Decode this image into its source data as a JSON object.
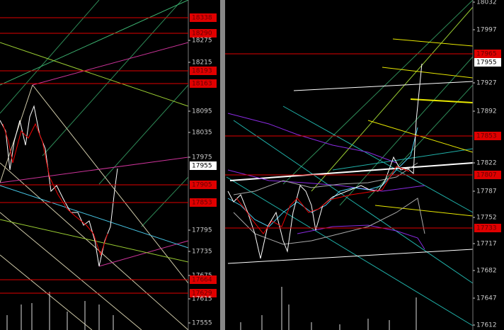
{
  "left_panel": {
    "labels": [
      {
        "text": "18338",
        "style": "alert"
      },
      {
        "text": "18290",
        "style": "alert"
      },
      {
        "text": "18275",
        "style": "plain"
      },
      {
        "text": "18215",
        "style": "plain"
      },
      {
        "text": "18193",
        "style": "alert"
      },
      {
        "text": "18163",
        "style": "alert"
      },
      {
        "text": "18095",
        "style": "plain"
      },
      {
        "text": "18035",
        "style": "plain"
      },
      {
        "text": "17975",
        "style": "plain"
      },
      {
        "text": "17955",
        "style": "current"
      },
      {
        "text": "17905",
        "style": "alert"
      },
      {
        "text": "17853",
        "style": "alert"
      },
      {
        "text": "17795",
        "style": "plain"
      },
      {
        "text": "17735",
        "style": "plain"
      },
      {
        "text": "17675",
        "style": "plain"
      },
      {
        "text": "17664",
        "style": "alert"
      },
      {
        "text": "17629",
        "style": "alert"
      },
      {
        "text": "17615",
        "style": "plain"
      },
      {
        "text": "17555",
        "style": "plain"
      }
    ]
  },
  "right_panel": {
    "labels": [
      {
        "text": "18032",
        "style": "plain"
      },
      {
        "text": "17997",
        "style": "plain"
      },
      {
        "text": "17965",
        "style": "alert"
      },
      {
        "text": "17955",
        "style": "current"
      },
      {
        "text": "17927",
        "style": "plain"
      },
      {
        "text": "17892",
        "style": "plain"
      },
      {
        "text": "17853",
        "style": "alert"
      },
      {
        "text": "17822",
        "style": "plain"
      },
      {
        "text": "17807",
        "style": "alert"
      },
      {
        "text": "17787",
        "style": "plain"
      },
      {
        "text": "17752",
        "style": "plain"
      },
      {
        "text": "17733",
        "style": "alert"
      },
      {
        "text": "17717",
        "style": "plain"
      },
      {
        "text": "17682",
        "style": "plain"
      },
      {
        "text": "17647",
        "style": "plain"
      },
      {
        "text": "17612",
        "style": "plain"
      }
    ]
  }
}
